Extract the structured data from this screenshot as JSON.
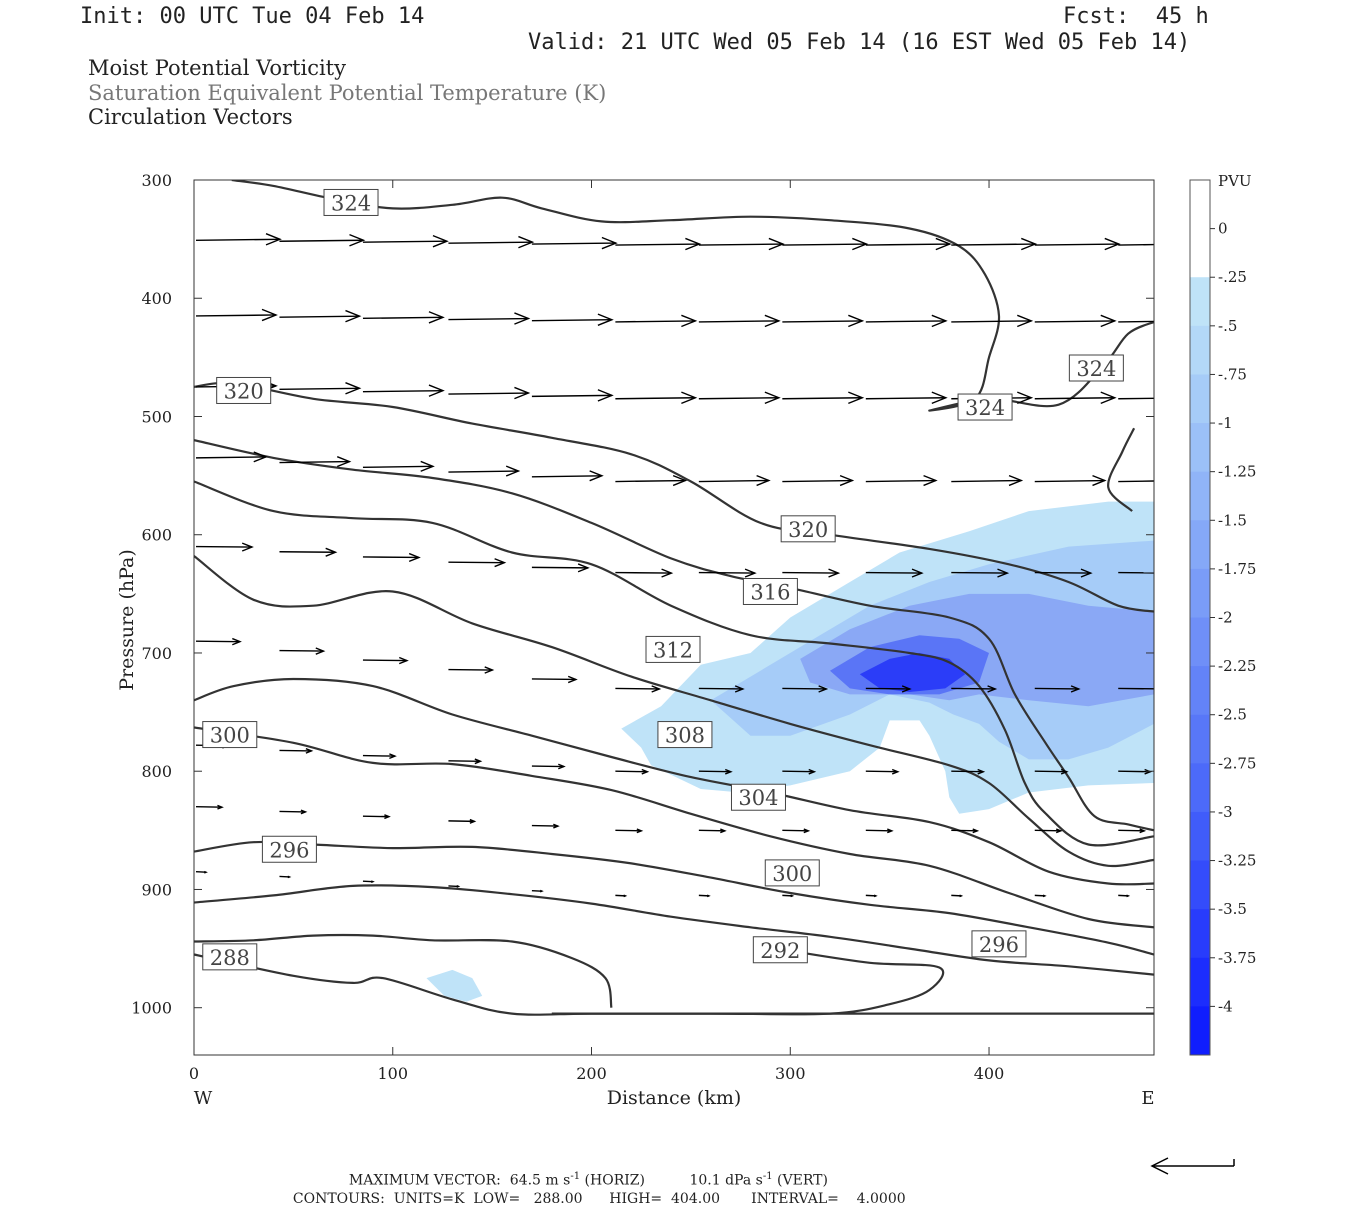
{
  "header": {
    "init": "Init: 00 UTC Tue 04 Feb 14",
    "fcst": "Fcst:  45 h",
    "valid": "Valid: 21 UTC Wed 05 Feb 14 (16 EST Wed 05 Feb 14)"
  },
  "titles": {
    "line1": "Moist Potential Vorticity",
    "line2": "Saturation Equivalent Potential Temperature (K)",
    "line3": "Circulation Vectors"
  },
  "footer": {
    "max_vector_label": "MAXIMUM VECTOR:",
    "max_horiz": "64.5 m s",
    "max_horiz_sup": "-1",
    "max_horiz_tail": " (HORIZ)",
    "max_vert": "10.1 dPa s",
    "max_vert_sup": "-1",
    "max_vert_tail": " (VERT)",
    "contours_label": "CONTOURS:",
    "units": "UNITS=K",
    "low": "LOW=   288.00",
    "high": "HIGH=  404.00",
    "interval": "INTERVAL=    4.0000"
  },
  "colors": {
    "contour": "#333333",
    "arrow": "#000000",
    "pv_light": "#bfe3f8",
    "pv_dark": "#1a1aff",
    "text_gray": "#777777"
  },
  "chart_data": {
    "type": "cross-section",
    "xlabel": "Distance (km)",
    "ylabel": "Pressure (hPa)",
    "xlim": [
      0,
      483
    ],
    "ylim": [
      1040,
      300
    ],
    "x_ticks": [
      0,
      100,
      200,
      300,
      400
    ],
    "y_ticks": [
      300,
      400,
      500,
      600,
      700,
      800,
      900,
      1000
    ],
    "x_end_labels": {
      "left": "W",
      "right": "E"
    },
    "colorbar": {
      "unit": "PVU",
      "levels": [
        "0",
        "-.25",
        "-.5",
        "-.75",
        "-1",
        "-1.25",
        "-1.5",
        "-1.75",
        "-2",
        "-2.25",
        "-2.5",
        "-2.75",
        "-3",
        "-3.25",
        "-3.5",
        "-3.75",
        "-4"
      ],
      "colors": [
        "#ffffff",
        "#ffffff",
        "#bfe3f8",
        "#b3d8f8",
        "#a6ccf8",
        "#9bc0f8",
        "#90b4f8",
        "#85a8f8",
        "#7a9cf8",
        "#6f8ff8",
        "#6383f8",
        "#5877f8",
        "#4c6af9",
        "#405cfa",
        "#344cfb",
        "#283cfc",
        "#1c2dfd",
        "#101efe"
      ]
    },
    "contour_labels": [
      {
        "text": "324",
        "x": 79,
        "p": 319
      },
      {
        "text": "324",
        "x": 454,
        "p": 459
      },
      {
        "text": "324",
        "x": 398,
        "p": 492
      },
      {
        "text": "320",
        "x": 25,
        "p": 478
      },
      {
        "text": "320",
        "x": 309,
        "p": 595
      },
      {
        "text": "316",
        "x": 290,
        "p": 648
      },
      {
        "text": "312",
        "x": 241,
        "p": 697
      },
      {
        "text": "308",
        "x": 247,
        "p": 769
      },
      {
        "text": "304",
        "x": 284,
        "p": 822
      },
      {
        "text": "300",
        "x": 18,
        "p": 769
      },
      {
        "text": "300",
        "x": 301,
        "p": 886
      },
      {
        "text": "296",
        "x": 48,
        "p": 866
      },
      {
        "text": "296",
        "x": 405,
        "p": 946
      },
      {
        "text": "292",
        "x": 295,
        "p": 951
      },
      {
        "text": "288",
        "x": 18,
        "p": 957
      }
    ],
    "contours": [
      [
        [
          19,
          300
        ],
        [
          40,
          305
        ],
        [
          70,
          316
        ],
        [
          100,
          324
        ],
        [
          130,
          321
        ],
        [
          155,
          315
        ],
        [
          175,
          324
        ],
        [
          205,
          335
        ],
        [
          240,
          334
        ],
        [
          280,
          331
        ],
        [
          320,
          334
        ],
        [
          360,
          341
        ],
        [
          385,
          356
        ],
        [
          398,
          380
        ],
        [
          405,
          415
        ],
        [
          400,
          450
        ],
        [
          393,
          485
        ],
        [
          370,
          495
        ],
        [
          400,
          485
        ],
        [
          435,
          490
        ],
        [
          458,
          456
        ],
        [
          470,
          430
        ],
        [
          483,
          420
        ]
      ],
      [
        [
          0,
          475
        ],
        [
          20,
          472
        ],
        [
          60,
          485
        ],
        [
          100,
          492
        ],
        [
          140,
          506
        ],
        [
          180,
          518
        ],
        [
          220,
          532
        ],
        [
          250,
          555
        ],
        [
          285,
          590
        ],
        [
          320,
          600
        ],
        [
          370,
          612
        ],
        [
          410,
          625
        ],
        [
          440,
          640
        ],
        [
          465,
          660
        ],
        [
          483,
          665
        ]
      ],
      [
        [
          0,
          520
        ],
        [
          40,
          535
        ],
        [
          80,
          545
        ],
        [
          120,
          552
        ],
        [
          160,
          565
        ],
        [
          200,
          590
        ],
        [
          240,
          620
        ],
        [
          270,
          635
        ],
        [
          300,
          645
        ],
        [
          340,
          660
        ],
        [
          380,
          670
        ],
        [
          400,
          688
        ],
        [
          413,
          735
        ],
        [
          428,
          775
        ],
        [
          440,
          805
        ],
        [
          453,
          838
        ],
        [
          470,
          845
        ],
        [
          483,
          850
        ]
      ],
      [
        [
          0,
          555
        ],
        [
          40,
          580
        ],
        [
          80,
          586
        ],
        [
          120,
          590
        ],
        [
          160,
          615
        ],
        [
          200,
          625
        ],
        [
          240,
          660
        ],
        [
          280,
          685
        ],
        [
          320,
          692
        ],
        [
          360,
          700
        ],
        [
          380,
          708
        ],
        [
          395,
          728
        ],
        [
          408,
          765
        ],
        [
          418,
          810
        ],
        [
          428,
          835
        ],
        [
          450,
          862
        ],
        [
          483,
          855
        ]
      ],
      [
        [
          0,
          618
        ],
        [
          30,
          655
        ],
        [
          60,
          660
        ],
        [
          100,
          648
        ],
        [
          140,
          675
        ],
        [
          180,
          695
        ],
        [
          220,
          720
        ],
        [
          260,
          740
        ],
        [
          300,
          760
        ],
        [
          340,
          778
        ],
        [
          380,
          795
        ],
        [
          400,
          810
        ],
        [
          420,
          840
        ],
        [
          440,
          868
        ],
        [
          460,
          880
        ],
        [
          483,
          875
        ]
      ],
      [
        [
          0,
          740
        ],
        [
          20,
          728
        ],
        [
          50,
          722
        ],
        [
          90,
          728
        ],
        [
          130,
          752
        ],
        [
          170,
          770
        ],
        [
          210,
          788
        ],
        [
          250,
          805
        ],
        [
          290,
          818
        ],
        [
          330,
          833
        ],
        [
          370,
          843
        ],
        [
          400,
          860
        ],
        [
          430,
          885
        ],
        [
          460,
          895
        ],
        [
          483,
          895
        ]
      ],
      [
        [
          0,
          763
        ],
        [
          50,
          776
        ],
        [
          90,
          793
        ],
        [
          130,
          794
        ],
        [
          170,
          804
        ],
        [
          210,
          816
        ],
        [
          250,
          836
        ],
        [
          290,
          855
        ],
        [
          330,
          870
        ],
        [
          370,
          880
        ],
        [
          410,
          903
        ],
        [
          450,
          925
        ],
        [
          483,
          932
        ]
      ],
      [
        [
          0,
          868
        ],
        [
          30,
          860
        ],
        [
          60,
          862
        ],
        [
          100,
          865
        ],
        [
          140,
          864
        ],
        [
          180,
          870
        ],
        [
          220,
          878
        ],
        [
          260,
          890
        ],
        [
          300,
          903
        ],
        [
          340,
          913
        ],
        [
          380,
          920
        ],
        [
          420,
          932
        ],
        [
          460,
          945
        ],
        [
          483,
          955
        ]
      ],
      [
        [
          0,
          911
        ],
        [
          40,
          905
        ],
        [
          80,
          897
        ],
        [
          120,
          898
        ],
        [
          160,
          904
        ],
        [
          200,
          912
        ],
        [
          240,
          923
        ],
        [
          280,
          932
        ],
        [
          320,
          940
        ],
        [
          360,
          950
        ],
        [
          400,
          960
        ],
        [
          440,
          965
        ],
        [
          483,
          972
        ]
      ],
      [
        [
          0,
          944
        ],
        [
          30,
          943
        ],
        [
          60,
          939
        ],
        [
          90,
          939
        ],
        [
          120,
          943
        ],
        [
          160,
          944
        ],
        [
          190,
          958
        ],
        [
          207,
          975
        ],
        [
          210,
          1000
        ]
      ],
      [
        [
          0,
          955
        ],
        [
          50,
          973
        ],
        [
          80,
          979
        ],
        [
          95,
          975
        ],
        [
          130,
          993
        ],
        [
          160,
          1005
        ],
        [
          200,
          1005
        ],
        [
          260,
          1005
        ],
        [
          320,
          1005
        ],
        [
          350,
          997
        ],
        [
          370,
          985
        ],
        [
          375,
          966
        ],
        [
          340,
          962
        ],
        [
          300,
          952
        ]
      ],
      [
        [
          180,
          1005
        ],
        [
          260,
          1005
        ],
        [
          340,
          1005
        ],
        [
          420,
          1005
        ],
        [
          483,
          1005
        ]
      ],
      [
        [
          473,
          510
        ],
        [
          467,
          530
        ],
        [
          460,
          560
        ],
        [
          472,
          580
        ]
      ]
    ],
    "pv_regions": [
      {
        "level": "-.25",
        "color": "#bfe3f8",
        "points": [
          [
            215,
            764
          ],
          [
            235,
            745
          ],
          [
            255,
            710
          ],
          [
            280,
            700
          ],
          [
            300,
            670
          ],
          [
            330,
            640
          ],
          [
            355,
            615
          ],
          [
            390,
            597
          ],
          [
            420,
            580
          ],
          [
            460,
            572
          ],
          [
            483,
            572
          ],
          [
            483,
            810
          ],
          [
            450,
            812
          ],
          [
            420,
            818
          ],
          [
            400,
            832
          ],
          [
            385,
            836
          ],
          [
            380,
            822
          ],
          [
            378,
            800
          ],
          [
            370,
            770
          ],
          [
            365,
            757
          ],
          [
            350,
            757
          ],
          [
            345,
            780
          ],
          [
            330,
            800
          ],
          [
            300,
            812
          ],
          [
            275,
            818
          ],
          [
            255,
            815
          ],
          [
            230,
            795
          ],
          [
            225,
            780
          ]
        ]
      },
      {
        "level": "-.5",
        "color": "#a6ccf8",
        "points": [
          [
            260,
            740
          ],
          [
            290,
            710
          ],
          [
            310,
            690
          ],
          [
            340,
            660
          ],
          [
            370,
            640
          ],
          [
            400,
            625
          ],
          [
            440,
            610
          ],
          [
            483,
            605
          ],
          [
            483,
            760
          ],
          [
            460,
            780
          ],
          [
            440,
            790
          ],
          [
            420,
            790
          ],
          [
            405,
            775
          ],
          [
            395,
            760
          ],
          [
            382,
            752
          ],
          [
            370,
            742
          ],
          [
            350,
            735
          ],
          [
            330,
            752
          ],
          [
            300,
            770
          ],
          [
            280,
            770
          ]
        ]
      },
      {
        "level": "-1.5",
        "color": "#8aa8f5",
        "points": [
          [
            305,
            705
          ],
          [
            330,
            680
          ],
          [
            360,
            660
          ],
          [
            390,
            650
          ],
          [
            420,
            650
          ],
          [
            450,
            660
          ],
          [
            483,
            665
          ],
          [
            483,
            735
          ],
          [
            450,
            745
          ],
          [
            420,
            740
          ],
          [
            395,
            735
          ],
          [
            380,
            740
          ],
          [
            360,
            735
          ],
          [
            330,
            735
          ],
          [
            310,
            725
          ]
        ]
      },
      {
        "level": "-2.5",
        "color": "#5a75f6",
        "points": [
          [
            320,
            715
          ],
          [
            340,
            695
          ],
          [
            365,
            685
          ],
          [
            385,
            688
          ],
          [
            400,
            700
          ],
          [
            395,
            725
          ],
          [
            375,
            735
          ],
          [
            350,
            735
          ],
          [
            330,
            730
          ]
        ]
      },
      {
        "level": "-3.5",
        "color": "#2b3df8",
        "points": [
          [
            335,
            718
          ],
          [
            350,
            705
          ],
          [
            365,
            700
          ],
          [
            380,
            705
          ],
          [
            388,
            718
          ],
          [
            378,
            730
          ],
          [
            360,
            733
          ],
          [
            345,
            730
          ]
        ]
      },
      {
        "level": "-.25",
        "color": "#bfe3f8",
        "points": [
          [
            117,
            975
          ],
          [
            130,
            968
          ],
          [
            140,
            975
          ],
          [
            145,
            990
          ],
          [
            137,
            995
          ],
          [
            126,
            990
          ]
        ]
      }
    ],
    "vector_rows": [
      {
        "p": 351,
        "y0": 355,
        "len": 42
      },
      {
        "p": 415,
        "y0": 420,
        "len": 40
      },
      {
        "p": 475,
        "y0": 485,
        "len": 40
      },
      {
        "p": 535,
        "y0": 555,
        "len": 35
      },
      {
        "p": 610,
        "y0": 632,
        "len": 28
      },
      {
        "p": 690,
        "y0": 730,
        "len": 22
      },
      {
        "p": 778,
        "y0": 800,
        "len": 16
      },
      {
        "p": 830,
        "y0": 850,
        "len": 13
      },
      {
        "p": 885,
        "y0": 905,
        "len": 5
      }
    ],
    "vector_columns": [
      0,
      42,
      84,
      127,
      169,
      211,
      253,
      295,
      337,
      380,
      422,
      464
    ],
    "reference_vector": {
      "direction": "west"
    }
  }
}
